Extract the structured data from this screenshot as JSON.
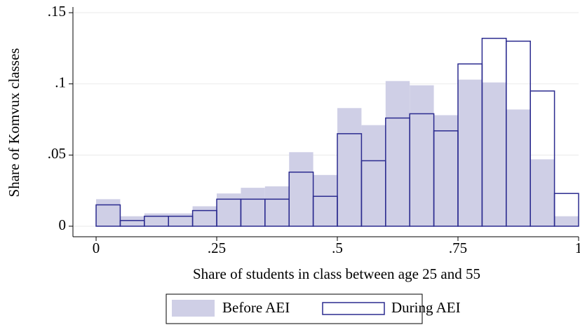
{
  "chart_data": {
    "type": "histogram",
    "x_label": "Share of students in class between age 25 and 55",
    "y_label": "Share of Komvux classes",
    "bins": [
      0,
      0.05,
      0.1,
      0.15,
      0.2,
      0.25,
      0.3,
      0.35,
      0.4,
      0.45,
      0.5,
      0.55,
      0.6,
      0.65,
      0.7,
      0.75,
      0.8,
      0.85,
      0.9,
      0.95,
      1
    ],
    "series": [
      {
        "name": "Before AEI",
        "color": "#cfcfe6",
        "filled": true,
        "values": [
          0.019,
          0.007,
          0.009,
          0.009,
          0.014,
          0.023,
          0.027,
          0.028,
          0.052,
          0.036,
          0.083,
          0.071,
          0.102,
          0.099,
          0.078,
          0.103,
          0.101,
          0.082,
          0.047,
          0.007
        ]
      },
      {
        "name": "During AEI",
        "color": "#2b2b8f",
        "filled": false,
        "values": [
          0.015,
          0.004,
          0.007,
          0.007,
          0.011,
          0.019,
          0.019,
          0.019,
          0.038,
          0.021,
          0.065,
          0.046,
          0.076,
          0.079,
          0.067,
          0.114,
          0.132,
          0.13,
          0.095,
          0.023
        ]
      }
    ],
    "xlim": [
      -0.048,
      1
    ],
    "ylim": [
      -0.0074,
      0.154
    ],
    "xticks": [
      0,
      {
        "value": 0.25,
        "label": ".25"
      },
      {
        "value": 0.5,
        "label": ".5"
      },
      {
        "value": 0.75,
        "label": ".75"
      },
      1
    ],
    "yticks": [
      0,
      {
        "value": 0.05,
        "label": ".05"
      },
      {
        "value": 0.1,
        "label": ".1"
      },
      {
        "value": 0.15,
        "label": ".15"
      }
    ],
    "grid": true
  }
}
